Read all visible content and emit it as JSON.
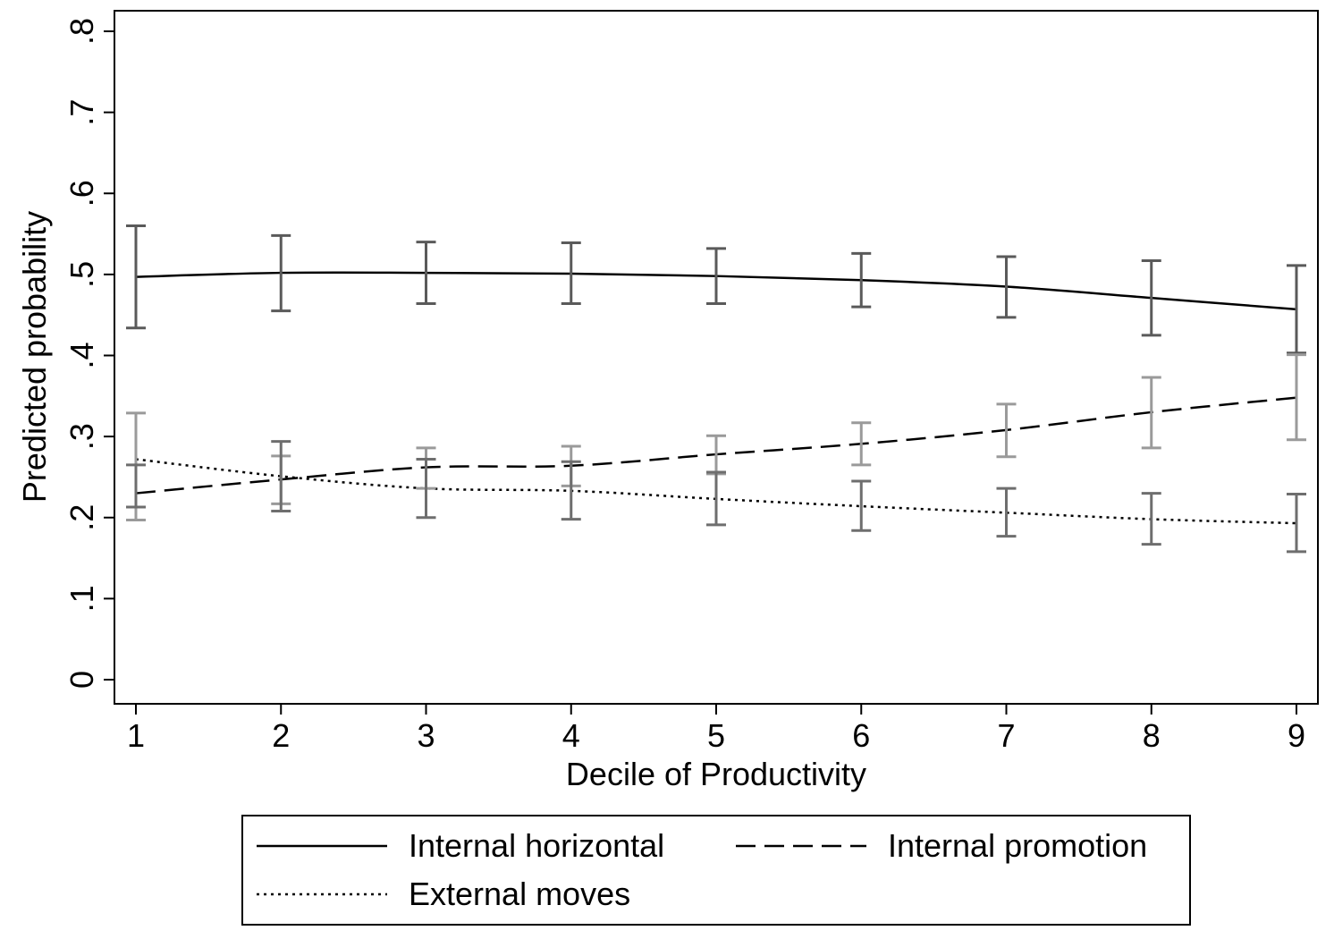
{
  "chart_data": {
    "type": "line",
    "xlabel": "Decile of Productivity",
    "ylabel": "Predicted probability",
    "x": [
      1,
      2,
      3,
      4,
      5,
      6,
      7,
      8,
      9
    ],
    "xlim": [
      0.85,
      9.15
    ],
    "ylim": [
      0,
      0.8
    ],
    "xticks": [
      "1",
      "2",
      "3",
      "4",
      "5",
      "6",
      "7",
      "8",
      "9"
    ],
    "yticks": [
      {
        "value": 0,
        "label": "0"
      },
      {
        "value": 0.1,
        "label": ".1"
      },
      {
        "value": 0.2,
        "label": ".2"
      },
      {
        "value": 0.3,
        "label": ".3"
      },
      {
        "value": 0.4,
        "label": ".4"
      },
      {
        "value": 0.5,
        "label": ".5"
      },
      {
        "value": 0.6,
        "label": ".6"
      },
      {
        "value": 0.7,
        "label": ".7"
      },
      {
        "value": 0.8,
        "label": ".8"
      }
    ],
    "grid": false,
    "legend": {
      "placement": "bottom",
      "columns": 2
    },
    "series": [
      {
        "name": "Internal horizontal",
        "line_style": "solid",
        "line_color": "#000000",
        "errorbar_color": "#5a5a5a",
        "values": [
          0.497,
          0.502,
          0.502,
          0.501,
          0.498,
          0.493,
          0.485,
          0.471,
          0.457
        ],
        "ci_low": [
          0.434,
          0.455,
          0.464,
          0.464,
          0.464,
          0.46,
          0.447,
          0.425,
          0.403
        ],
        "ci_high": [
          0.56,
          0.548,
          0.54,
          0.539,
          0.532,
          0.526,
          0.522,
          0.517,
          0.511
        ]
      },
      {
        "name": "Internal promotion",
        "line_style": "dashed",
        "line_color": "#000000",
        "errorbar_color": "#9a9a9a",
        "values": [
          0.23,
          0.247,
          0.262,
          0.264,
          0.278,
          0.291,
          0.308,
          0.33,
          0.348
        ],
        "ci_low": [
          0.197,
          0.217,
          0.236,
          0.239,
          0.254,
          0.265,
          0.275,
          0.286,
          0.296
        ],
        "ci_high": [
          0.329,
          0.276,
          0.286,
          0.288,
          0.301,
          0.317,
          0.34,
          0.373,
          0.401
        ]
      },
      {
        "name": "External moves",
        "line_style": "dotted",
        "line_color": "#000000",
        "errorbar_color": "#6e6e6e",
        "values": [
          0.272,
          0.251,
          0.236,
          0.233,
          0.223,
          0.214,
          0.206,
          0.198,
          0.193
        ],
        "ci_low": [
          0.213,
          0.208,
          0.2,
          0.198,
          0.191,
          0.184,
          0.177,
          0.167,
          0.158
        ],
        "ci_high": [
          0.265,
          0.294,
          0.272,
          0.269,
          0.256,
          0.245,
          0.236,
          0.23,
          0.229
        ]
      }
    ]
  }
}
